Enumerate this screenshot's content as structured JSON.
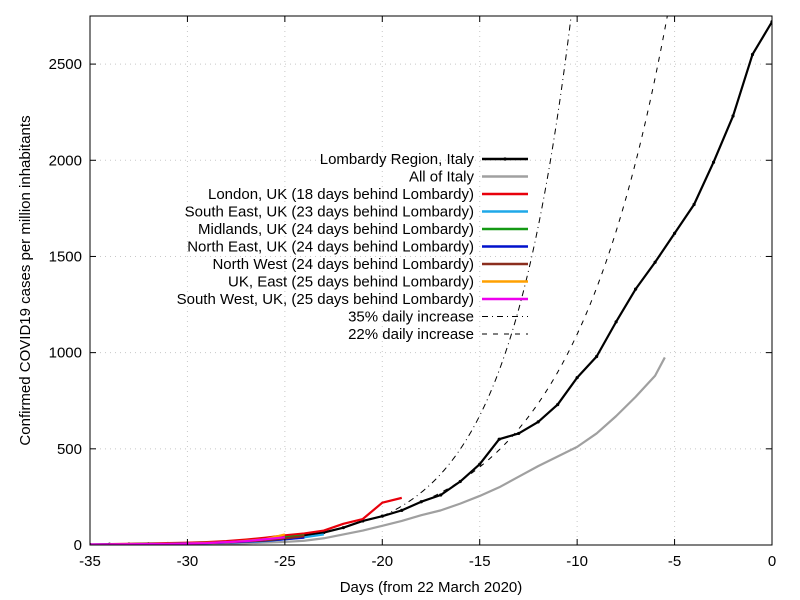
{
  "chart_data": {
    "type": "line",
    "xlabel": "Days (from 22 March 2020)",
    "ylabel": "Confirmed COVID19 cases per million inhabitants",
    "xlim": [
      -35,
      0
    ],
    "ylim": [
      0,
      2750
    ],
    "x_ticks": [
      -35,
      -30,
      -25,
      -20,
      -15,
      -10,
      -5,
      0
    ],
    "y_ticks": [
      0,
      500,
      1000,
      1500,
      2000,
      2500
    ],
    "grid": true,
    "legend_position": "top-center",
    "series": [
      {
        "name": "Lombardy Region, Italy",
        "color": "#000000",
        "style": "solid-points",
        "x": [
          -35,
          -34,
          -33,
          -32,
          -31,
          -30,
          -29,
          -28,
          -27,
          -26,
          -25,
          -24,
          -23,
          -22,
          -21,
          -20,
          -19,
          -18,
          -17,
          -16,
          -15,
          -14,
          -13,
          -12,
          -11,
          -10,
          -9,
          -8,
          -7,
          -6,
          -5,
          -4,
          -3,
          -2,
          -1,
          0
        ],
        "y": [
          3,
          4,
          5,
          6,
          8,
          10,
          12,
          15,
          20,
          28,
          38,
          50,
          65,
          90,
          125,
          150,
          180,
          225,
          260,
          330,
          420,
          550,
          580,
          640,
          730,
          870,
          980,
          1160,
          1330,
          1470,
          1620,
          1770,
          1990,
          2230,
          2550,
          2720
        ]
      },
      {
        "name": "All of Italy",
        "color": "#a0a0a0",
        "style": "solid",
        "x": [
          -35,
          -33,
          -31,
          -29,
          -27,
          -25,
          -24,
          -23,
          -22,
          -21,
          -20,
          -19,
          -18,
          -17,
          -16,
          -15,
          -14,
          -13,
          -12,
          -11,
          -10,
          -9,
          -8,
          -7,
          -6,
          -5.5
        ],
        "y": [
          2,
          3,
          4,
          6,
          9,
          16,
          22,
          35,
          55,
          75,
          100,
          125,
          155,
          180,
          215,
          255,
          300,
          355,
          410,
          460,
          510,
          580,
          670,
          770,
          880,
          975
        ]
      },
      {
        "name": "London, UK (18 days behind Lombardy)",
        "color": "#e8000b",
        "style": "solid",
        "x": [
          -34,
          -33,
          -32,
          -31,
          -30,
          -29,
          -28,
          -27,
          -26,
          -25,
          -24,
          -23,
          -22,
          -21,
          -20,
          -19
        ],
        "y": [
          5,
          6,
          8,
          10,
          12,
          15,
          20,
          28,
          38,
          50,
          60,
          75,
          110,
          135,
          220,
          245
        ]
      },
      {
        "name": "South East, UK (23 days behind Lombardy)",
        "color": "#1fa8e8",
        "style": "solid",
        "x": [
          -34,
          -32,
          -30,
          -28,
          -26,
          -25,
          -24,
          -23
        ],
        "y": [
          3,
          5,
          8,
          12,
          20,
          30,
          40,
          55
        ]
      },
      {
        "name": "Midlands, UK (24 days behind Lombardy)",
        "color": "#149914",
        "style": "solid",
        "x": [
          -34,
          -32,
          -30,
          -28,
          -27,
          -26,
          -25,
          -24
        ],
        "y": [
          4,
          6,
          9,
          14,
          20,
          30,
          40,
          50
        ]
      },
      {
        "name": "North East, UK (24 days behind Lombardy)",
        "color": "#0011cc",
        "style": "solid",
        "x": [
          -34,
          -32,
          -30,
          -28,
          -26,
          -25,
          -24
        ],
        "y": [
          3,
          5,
          8,
          12,
          22,
          30,
          38
        ]
      },
      {
        "name": "North West (24 days behind Lombardy)",
        "color": "#8b2e1e",
        "style": "solid",
        "x": [
          -34,
          -32,
          -30,
          -28,
          -26,
          -25,
          -24
        ],
        "y": [
          4,
          6,
          9,
          14,
          24,
          34,
          46
        ]
      },
      {
        "name": "UK, East (25 days behind Lombardy)",
        "color": "#ffa000",
        "style": "solid",
        "x": [
          -34,
          -32,
          -30,
          -28,
          -26,
          -25
        ],
        "y": [
          3,
          5,
          8,
          14,
          30,
          55
        ]
      },
      {
        "name": "South West, UK, (25 days behind Lombardy)",
        "color": "#ee00ee",
        "style": "solid",
        "x": [
          -35,
          -33,
          -31,
          -29,
          -27,
          -26,
          -25
        ],
        "y": [
          3,
          4,
          6,
          10,
          20,
          30,
          40
        ]
      },
      {
        "name": "35% daily increase",
        "color": "#000000",
        "style": "dashdot",
        "model": {
          "x0": -20,
          "y0": 150,
          "rate": 0.35
        }
      },
      {
        "name": "22% daily increase",
        "color": "#000000",
        "style": "dashed",
        "model": {
          "x0": -20,
          "y0": 150,
          "rate": 0.22
        }
      }
    ]
  }
}
